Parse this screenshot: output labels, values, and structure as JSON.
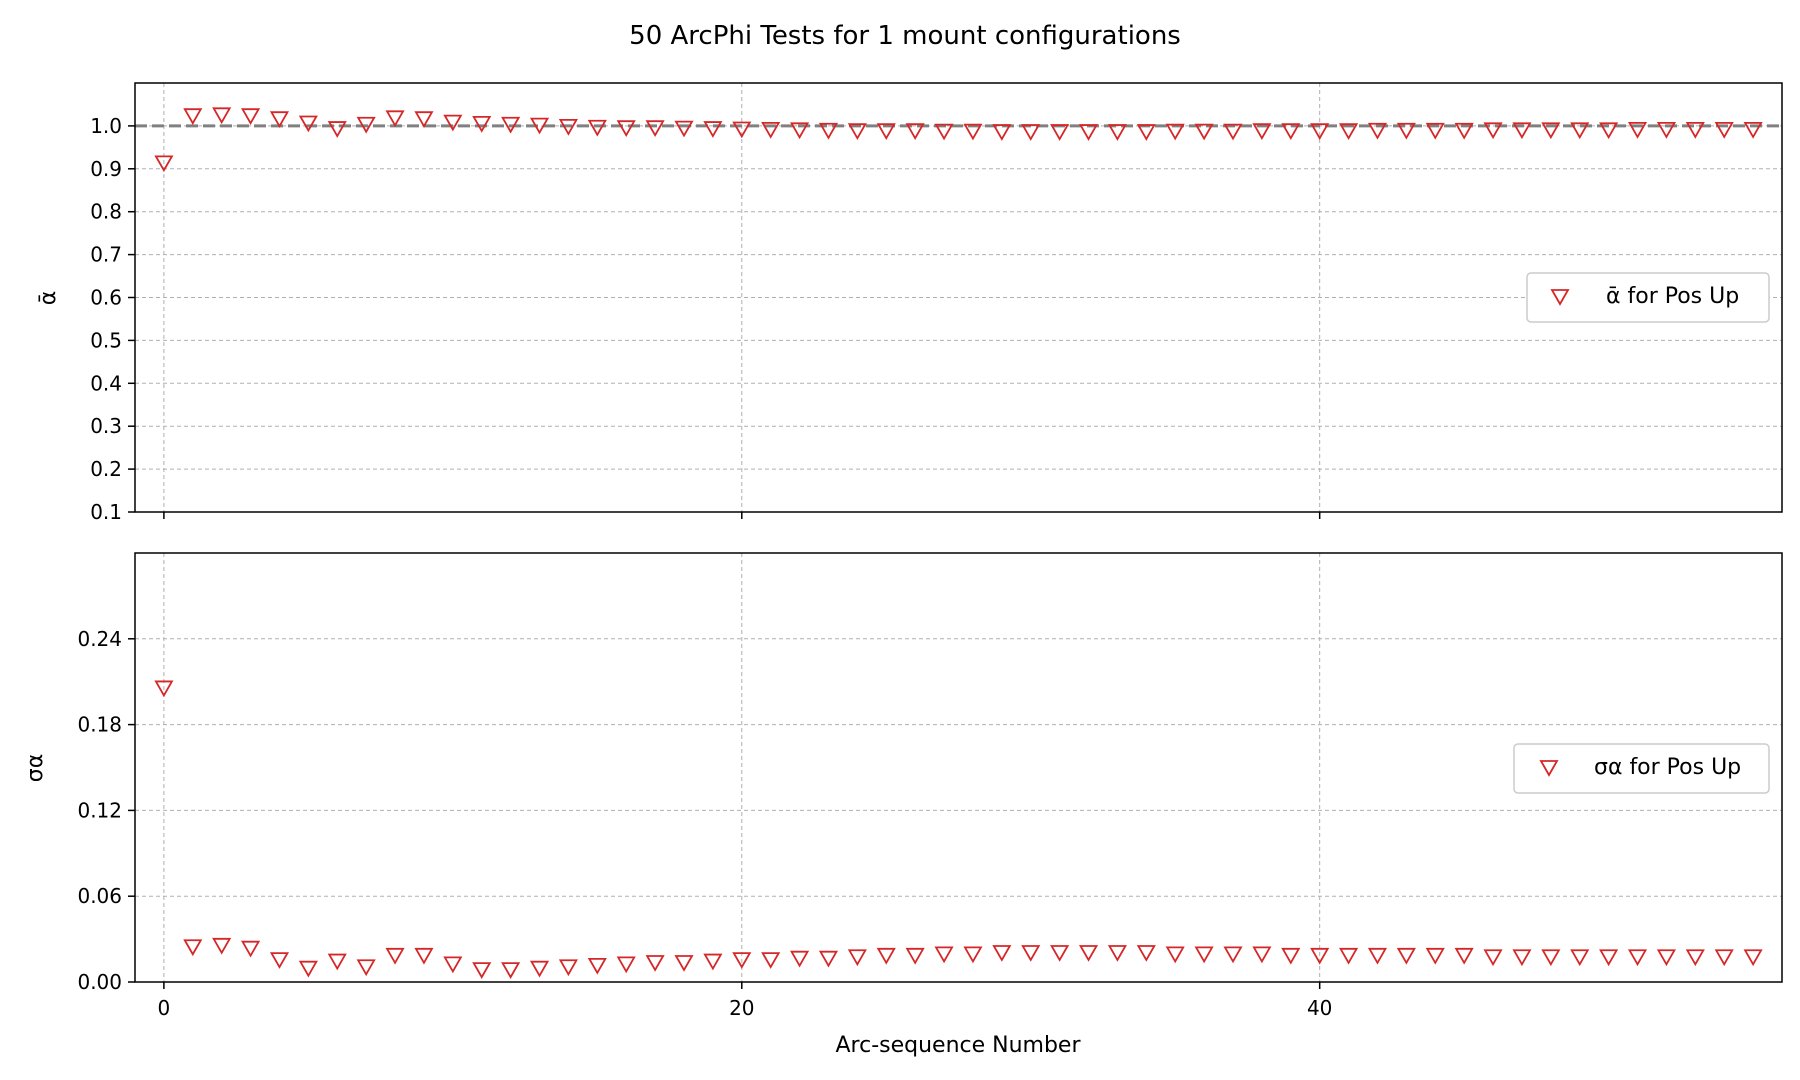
{
  "figure_title": "50 ArcPhi Tests for 1 mount configurations",
  "colors": {
    "marker": "#d62728",
    "reference_line": "#808080",
    "grid": "#b0b0b0"
  },
  "chart_data": [
    {
      "type": "scatter",
      "panel": "top",
      "ylabel": "ᾱ",
      "xlim": [
        -1,
        56
      ],
      "ylim": [
        0.1,
        1.1
      ],
      "yticks": [
        0.1,
        0.2,
        0.3,
        0.4,
        0.5,
        0.6,
        0.7,
        0.8,
        0.9,
        1.0
      ],
      "xticks": [
        0,
        20,
        40
      ],
      "show_xtick_labels": false,
      "grid": true,
      "reference_line": 1.0,
      "legend": {
        "placement": "center-right",
        "label": "ᾱ for Pos Up"
      },
      "series": [
        {
          "name": "ᾱ for Pos Up",
          "marker": "triangle-down",
          "x": [
            0,
            1,
            2,
            3,
            4,
            5,
            6,
            7,
            8,
            9,
            10,
            11,
            12,
            13,
            14,
            15,
            16,
            17,
            18,
            19,
            20,
            21,
            22,
            23,
            24,
            25,
            26,
            27,
            28,
            29,
            30,
            31,
            32,
            33,
            34,
            35,
            36,
            37,
            38,
            39,
            40,
            41,
            42,
            43,
            44,
            45,
            46,
            47,
            48,
            49,
            50,
            51,
            52,
            53,
            54,
            55
          ],
          "y": [
            0.915,
            1.025,
            1.027,
            1.025,
            1.018,
            1.008,
            0.995,
            1.005,
            1.02,
            1.018,
            1.01,
            1.007,
            1.005,
            1.003,
            1.0,
            0.998,
            0.997,
            0.997,
            0.996,
            0.995,
            0.994,
            0.993,
            0.992,
            0.991,
            0.99,
            0.99,
            0.99,
            0.989,
            0.989,
            0.988,
            0.988,
            0.988,
            0.988,
            0.988,
            0.988,
            0.989,
            0.989,
            0.989,
            0.99,
            0.99,
            0.99,
            0.99,
            0.991,
            0.991,
            0.991,
            0.991,
            0.992,
            0.992,
            0.992,
            0.992,
            0.992,
            0.993,
            0.993,
            0.993,
            0.993,
            0.993
          ]
        }
      ]
    },
    {
      "type": "scatter",
      "panel": "bottom",
      "ylabel": "σα",
      "xlabel": "Arc-sequence Number",
      "xlim": [
        -1,
        56
      ],
      "ylim": [
        0.0,
        0.3
      ],
      "yticks": [
        0.0,
        0.06,
        0.12,
        0.18,
        0.24
      ],
      "xticks": [
        0,
        20,
        40
      ],
      "show_xtick_labels": true,
      "grid": true,
      "legend": {
        "placement": "center-right",
        "label": "σα for Pos Up"
      },
      "series": [
        {
          "name": "σα for Pos Up",
          "marker": "triangle-down",
          "x": [
            0,
            1,
            2,
            3,
            4,
            5,
            6,
            7,
            8,
            9,
            10,
            11,
            12,
            13,
            14,
            15,
            16,
            17,
            18,
            19,
            20,
            21,
            22,
            23,
            24,
            25,
            26,
            27,
            28,
            29,
            30,
            31,
            32,
            33,
            34,
            35,
            36,
            37,
            38,
            39,
            40,
            41,
            42,
            43,
            44,
            45,
            46,
            47,
            48,
            49,
            50,
            51,
            52,
            53,
            54,
            55
          ],
          "y": [
            0.206,
            0.025,
            0.026,
            0.024,
            0.016,
            0.01,
            0.015,
            0.011,
            0.019,
            0.019,
            0.013,
            0.009,
            0.009,
            0.01,
            0.011,
            0.012,
            0.013,
            0.014,
            0.014,
            0.015,
            0.016,
            0.016,
            0.017,
            0.017,
            0.018,
            0.019,
            0.019,
            0.02,
            0.02,
            0.021,
            0.021,
            0.021,
            0.021,
            0.021,
            0.021,
            0.02,
            0.02,
            0.02,
            0.02,
            0.019,
            0.019,
            0.019,
            0.019,
            0.019,
            0.019,
            0.019,
            0.018,
            0.018,
            0.018,
            0.018,
            0.018,
            0.018,
            0.018,
            0.018,
            0.018,
            0.018
          ]
        }
      ]
    }
  ]
}
